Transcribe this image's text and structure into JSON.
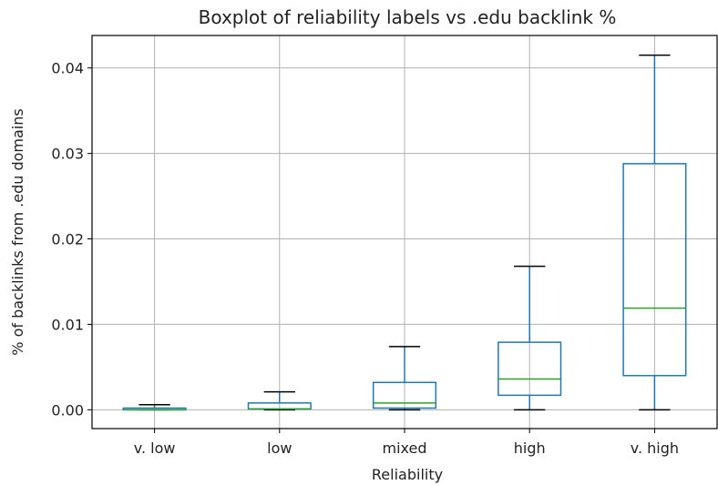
{
  "chart_data": {
    "type": "boxplot",
    "title": "Boxplot of reliability labels vs .edu backlink %",
    "xlabel": "Reliability",
    "ylabel": "% of backlinks from .edu domains",
    "ylim": [
      -0.0022,
      0.0438
    ],
    "grid": true,
    "yticks": [
      0.0,
      0.01,
      0.02,
      0.03,
      0.04
    ],
    "ytick_labels": [
      "0.00",
      "0.01",
      "0.02",
      "0.03",
      "0.04"
    ],
    "categories": [
      "v. low",
      "low",
      "mixed",
      "high",
      "v. high"
    ],
    "boxes": [
      {
        "category": "v. low",
        "whislo": 0.0,
        "q1": 0.0,
        "med": 0.0,
        "q3": 0.0002,
        "whishi": 0.0006
      },
      {
        "category": "low",
        "whislo": 0.0,
        "q1": 0.0001,
        "med": 0.0001,
        "q3": 0.0008,
        "whishi": 0.0021
      },
      {
        "category": "mixed",
        "whislo": 0.0,
        "q1": 0.0002,
        "med": 0.0008,
        "q3": 0.0032,
        "whishi": 0.0074
      },
      {
        "category": "high",
        "whislo": 0.0,
        "q1": 0.0017,
        "med": 0.0036,
        "q3": 0.0079,
        "whishi": 0.0168
      },
      {
        "category": "v. high",
        "whislo": 0.0,
        "q1": 0.004,
        "med": 0.0119,
        "q3": 0.0288,
        "whishi": 0.0415
      }
    ]
  }
}
